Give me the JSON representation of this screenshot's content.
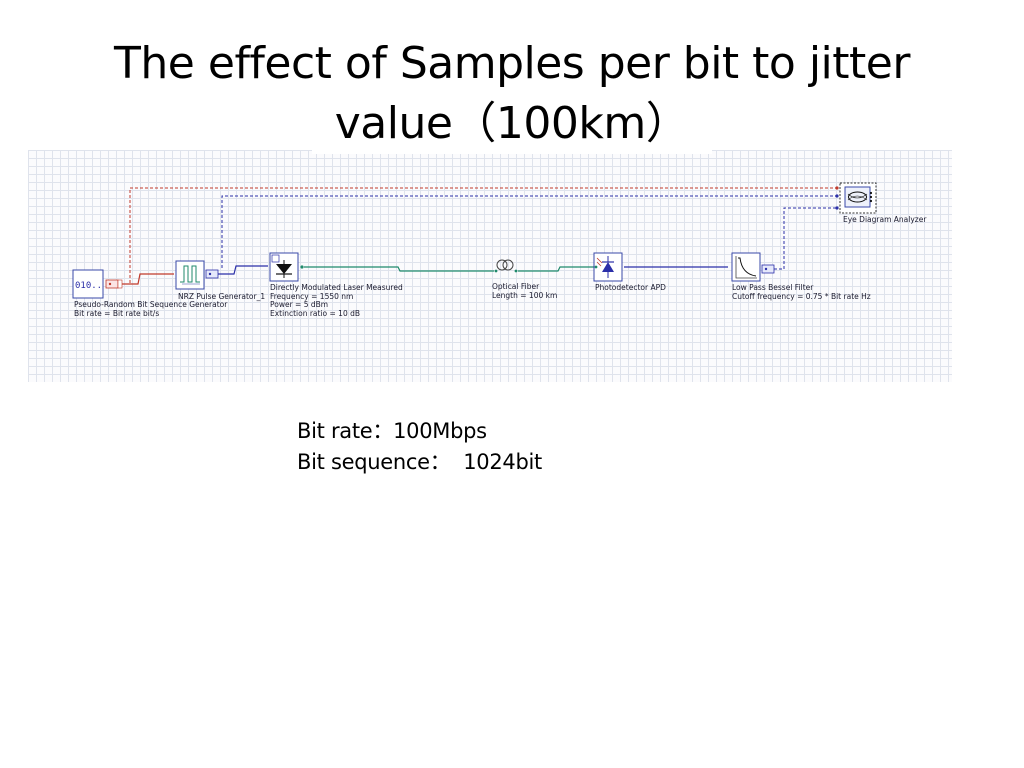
{
  "slide": {
    "title_line1": "The effect of Samples per bit to jitter",
    "title_line2": "value（100km）"
  },
  "diagram": {
    "components": [
      {
        "id": "prbs",
        "icon": "prbs-generator-icon",
        "icon_text": "010..",
        "lines": [
          "Pseudo-Random Bit Sequence Generator",
          "Bit rate = Bit rate  bit/s"
        ]
      },
      {
        "id": "nrz",
        "icon": "nrz-pulse-generator-icon",
        "lines": [
          "NRZ Pulse Generator_1"
        ]
      },
      {
        "id": "laser",
        "icon": "directly-modulated-laser-icon",
        "lines": [
          "Directly Modulated Laser Measured",
          "Frequency = 1550  nm",
          "Power = 5  dBm",
          "Extinction ratio = 10  dB"
        ]
      },
      {
        "id": "fiber",
        "icon": "optical-fiber-icon",
        "lines": [
          "Optical Fiber",
          "Length = 100  km"
        ]
      },
      {
        "id": "apd",
        "icon": "photodetector-icon",
        "lines": [
          "Photodetector APD"
        ]
      },
      {
        "id": "filter",
        "icon": "low-pass-filter-icon",
        "lines": [
          "Low Pass Bessel Filter",
          "Cutoff frequency = 0.75 * Bit rate  Hz"
        ]
      },
      {
        "id": "eye",
        "icon": "eye-diagram-analyzer-icon",
        "lines": [
          "Eye Diagram Analyzer"
        ]
      }
    ],
    "colors": {
      "electrical_red": "#c0392b",
      "electrical_blue": "#2b2fa8",
      "optical_green": "#1f8a6b",
      "component_blue": "#3848a8"
    }
  },
  "info": {
    "bit_rate_label": "Bit rate：",
    "bit_rate_value": "100Mbps",
    "bit_sequence_label": "Bit sequence：",
    "bit_sequence_value": "1024bit"
  }
}
